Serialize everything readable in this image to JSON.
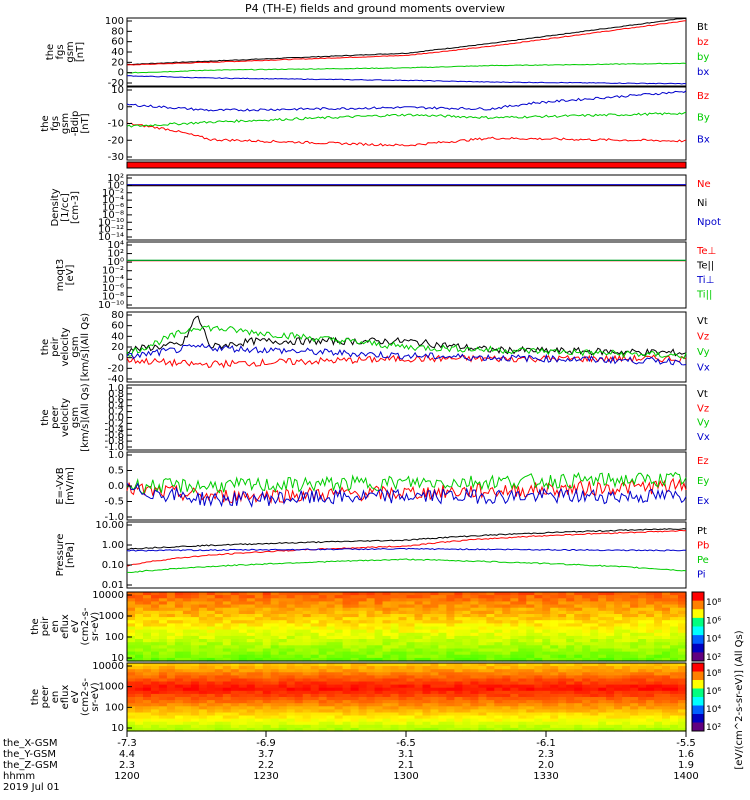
{
  "chart_data": {
    "type": "line",
    "title": "P4 (TH-E) fields and ground moments overview",
    "panels": [
      {
        "id": "fgs-gsm",
        "ylabel": [
          "the",
          "fgs",
          "gsm",
          "[nT]"
        ],
        "ylim": [
          -20,
          100
        ],
        "yticks": [
          "100",
          "80",
          "60",
          "40",
          "20",
          "0",
          "-20"
        ],
        "series": [
          {
            "name": "Bt",
            "color": "#000000",
            "x": [
              1200,
              1230,
              1300,
              1330,
              1400
            ],
            "y": [
              18,
              24,
              38,
              55,
              100
            ]
          },
          {
            "name": "bz",
            "color": "#ff0000",
            "x": [
              1200,
              1230,
              1300,
              1330,
              1400
            ],
            "y": [
              17,
              22,
              34,
              50,
              95
            ]
          },
          {
            "name": "by",
            "color": "#00cc00",
            "x": [
              1200,
              1230,
              1300,
              1330,
              1400
            ],
            "y": [
              3,
              8,
              12,
              16,
              20
            ]
          },
          {
            "name": "bx",
            "color": "#0000cc",
            "x": [
              1200,
              1230,
              1300,
              1330,
              1400
            ],
            "y": [
              -2,
              -6,
              -10,
              -13,
              -16
            ]
          }
        ]
      },
      {
        "id": "fgs-dsl",
        "ylabel": [
          "the",
          "fgs",
          "gsm",
          "-Bdip",
          "[nT]"
        ],
        "ylim": [
          -35,
          15
        ],
        "yticks": [
          "10",
          "0",
          "-10",
          "-20",
          "-30"
        ],
        "series": [
          {
            "name": "Bz",
            "color": "#ff0000",
            "x": [
              1200,
              1215,
              1230,
              1300,
              1330,
              1400
            ],
            "y": [
              -10,
              -14,
              -21,
              -25,
              -20,
              -22
            ]
          },
          {
            "name": "By",
            "color": "#00cc00",
            "x": [
              1200,
              1230,
              1300,
              1330,
              1400
            ],
            "y": [
              -12,
              -9,
              -4,
              -6,
              -3
            ]
          },
          {
            "name": "Bx",
            "color": "#0000cc",
            "x": [
              1200,
              1230,
              1300,
              1330,
              1345,
              1400
            ],
            "y": [
              3,
              -1,
              1,
              0,
              4,
              12
            ]
          }
        ]
      },
      {
        "id": "density",
        "ylabel": [
          "Density",
          "[1/cc]",
          "[cm-3]"
        ],
        "ylim": [
          -15,
          2
        ],
        "yscale": "log",
        "yticks": [
          "10²",
          "10⁰",
          "10⁻²",
          "10⁻⁴",
          "10⁻⁶",
          "10⁻⁸",
          "10⁻¹⁰",
          "10⁻¹²",
          "10⁻¹⁴"
        ],
        "series": [
          {
            "name": "Ne",
            "color": "#ff0000",
            "x": [
              1200,
              1400
            ],
            "y": [
              0.2,
              0.2
            ]
          },
          {
            "name": "Ni",
            "color": "#000000",
            "x": [
              1200,
              1400
            ],
            "y": [
              0.15,
              0.15
            ]
          },
          {
            "name": "Npot",
            "color": "#0000cc",
            "x": [
              1200,
              1400
            ],
            "y": [
              0.3,
              0.3
            ]
          }
        ]
      },
      {
        "id": "temperature",
        "ylabel": [
          "moqt3",
          "[eV]"
        ],
        "ylim": [
          -11,
          5
        ],
        "yscale": "log",
        "yticks": [
          "10⁴",
          "10²",
          "10⁰",
          "10⁻²",
          "10⁻⁴",
          "10⁻⁶",
          "10⁻⁸",
          "10⁻¹⁰"
        ],
        "series": [
          {
            "name": "Te⊥",
            "color": "#ff0000",
            "x": [
              1200,
              1400
            ],
            "y": [
              3,
              3
            ]
          },
          {
            "name": "Te||",
            "color": "#000000",
            "x": [
              1200,
              1400
            ],
            "y": [
              3.2,
              3.2
            ]
          },
          {
            "name": "Ti⊥",
            "color": "#0000cc",
            "x": [
              1200,
              1400
            ],
            "y": [
              3.5,
              3.5
            ]
          },
          {
            "name": "Ti||",
            "color": "#00cc00",
            "x": [
              1200,
              1400
            ],
            "y": [
              3.6,
              3.6
            ]
          }
        ]
      },
      {
        "id": "peir-velocity",
        "ylabel": [
          "the",
          "peir",
          "velocity",
          "gsm",
          "[km/s](All Qs)"
        ],
        "ylim": [
          -40,
          80
        ],
        "yticks": [
          "80",
          "60",
          "40",
          "20",
          "0",
          "-20",
          "-40"
        ],
        "series": [
          {
            "name": "Vt",
            "color": "#000000",
            "x": [
              1200,
              1220,
              1225,
              1230,
              1245,
              1300,
              1330,
              1400
            ],
            "y": [
              15,
              25,
              75,
              20,
              30,
              30,
              15,
              10
            ]
          },
          {
            "name": "Vz",
            "color": "#ff0000",
            "x": [
              1200,
              1225,
              1300,
              1400
            ],
            "y": [
              -2,
              -10,
              0,
              0
            ]
          },
          {
            "name": "Vy",
            "color": "#00cc00",
            "x": [
              1200,
              1225,
              1300,
              1400
            ],
            "y": [
              8,
              55,
              20,
              5
            ]
          },
          {
            "name": "Vx",
            "color": "#0000cc",
            "x": [
              1200,
              1225,
              1300,
              1400
            ],
            "y": [
              3,
              20,
              5,
              -5
            ]
          }
        ]
      },
      {
        "id": "peer-velocity",
        "ylabel": [
          "the",
          "peer",
          "velocity",
          "gsm",
          "[km/s](All Qs)"
        ],
        "ylim": [
          -1,
          1
        ],
        "yticks": [
          "1.0",
          "0.8",
          "0.6",
          "0.4",
          "0.2",
          "0.0",
          "-0.2",
          "-0.4",
          "-0.6",
          "-0.8",
          "-1.0"
        ],
        "series": [
          {
            "name": "Vt",
            "color": "#000000",
            "x": [],
            "y": []
          },
          {
            "name": "Vz",
            "color": "#ff0000",
            "x": [],
            "y": []
          },
          {
            "name": "Vy",
            "color": "#00cc00",
            "x": [],
            "y": []
          },
          {
            "name": "Vx",
            "color": "#0000cc",
            "x": [],
            "y": []
          }
        ]
      },
      {
        "id": "efield",
        "ylabel": [
          "E=-VxB",
          "[mV/m]"
        ],
        "ylim": [
          -1,
          1
        ],
        "yticks": [
          "1.0",
          "0.5",
          "0.0",
          "-0.5",
          "-1.0"
        ],
        "series": [
          {
            "name": "Ez",
            "color": "#ff0000",
            "x": [
              1200,
              1230,
              1300,
              1400
            ],
            "y": [
              -0.1,
              -0.3,
              -0.2,
              0
            ]
          },
          {
            "name": "Ey",
            "color": "#00cc00",
            "x": [
              1200,
              1230,
              1300,
              1400
            ],
            "y": [
              0,
              0,
              0.1,
              0.2
            ]
          },
          {
            "name": "Ex",
            "color": "#0000cc",
            "x": [
              1200,
              1230,
              1300,
              1400
            ],
            "y": [
              -0.1,
              -0.4,
              -0.3,
              -0.3
            ]
          }
        ]
      },
      {
        "id": "pressure",
        "ylabel": [
          "Pressure",
          "[nPa]"
        ],
        "ylim": [
          -2,
          1
        ],
        "yscale": "log",
        "yticks": [
          "10.00",
          "1.00",
          "0.10",
          "0.01"
        ],
        "series": [
          {
            "name": "Pt",
            "color": "#000000",
            "x": [
              1200,
              1300,
              1400
            ],
            "y": [
              0.6,
              1.5,
              5
            ]
          },
          {
            "name": "Pb",
            "color": "#ff0000",
            "x": [
              1200,
              1300,
              1400
            ],
            "y": [
              0.1,
              0.8,
              4
            ]
          },
          {
            "name": "Pe",
            "color": "#00cc00",
            "x": [
              1200,
              1300,
              1400
            ],
            "y": [
              0.05,
              0.2,
              0.06
            ]
          },
          {
            "name": "Pi",
            "color": "#0000cc",
            "x": [
              1200,
              1300,
              1400
            ],
            "y": [
              0.5,
              0.6,
              0.5
            ]
          }
        ]
      },
      {
        "id": "peir-spectrogram",
        "type": "heatmap",
        "ylabel": [
          "the",
          "peir",
          "en",
          "eflux",
          "eV",
          "(cm2-s-",
          "sr-eV)"
        ],
        "ylim": [
          5,
          20000
        ],
        "yscale": "log",
        "yticks": [
          "10000",
          "1000",
          "100",
          "10"
        ],
        "colorbar_label": "[eV/(cm^2-s-sr-eV)] (All Qs)",
        "colorbar_ticks": [
          "10⁸",
          "10⁶",
          "10⁴",
          "10²"
        ]
      },
      {
        "id": "peer-spectrogram",
        "type": "heatmap",
        "ylabel": [
          "the",
          "peer",
          "en",
          "eflux",
          "eV",
          "(cm2-s-",
          "sr-eV)"
        ],
        "ylim": [
          5,
          20000
        ],
        "yscale": "log",
        "yticks": [
          "10000",
          "1000",
          "100",
          "10"
        ],
        "colorbar_label": "[eV/(cm^2-s-sr-eV)] (All Qs)",
        "colorbar_ticks": [
          "10⁸",
          "10⁶",
          "10⁴",
          "10²"
        ]
      }
    ],
    "xaxis": {
      "rows": [
        {
          "label": "the_X-GSM",
          "values": [
            "-7.3",
            "-6.9",
            "-6.5",
            "-6.1",
            "-5.5"
          ]
        },
        {
          "label": "the_Y-GSM",
          "values": [
            "4.4",
            "3.7",
            "3.1",
            "2.3",
            "1.6"
          ]
        },
        {
          "label": "the_Z-GSM",
          "values": [
            "2.3",
            "2.2",
            "2.1",
            "2.0",
            "1.9"
          ]
        },
        {
          "label": "hhmm",
          "values": [
            "1200",
            "1230",
            "1300",
            "1330",
            "1400"
          ]
        }
      ],
      "date": "2019 Jul 01"
    }
  }
}
